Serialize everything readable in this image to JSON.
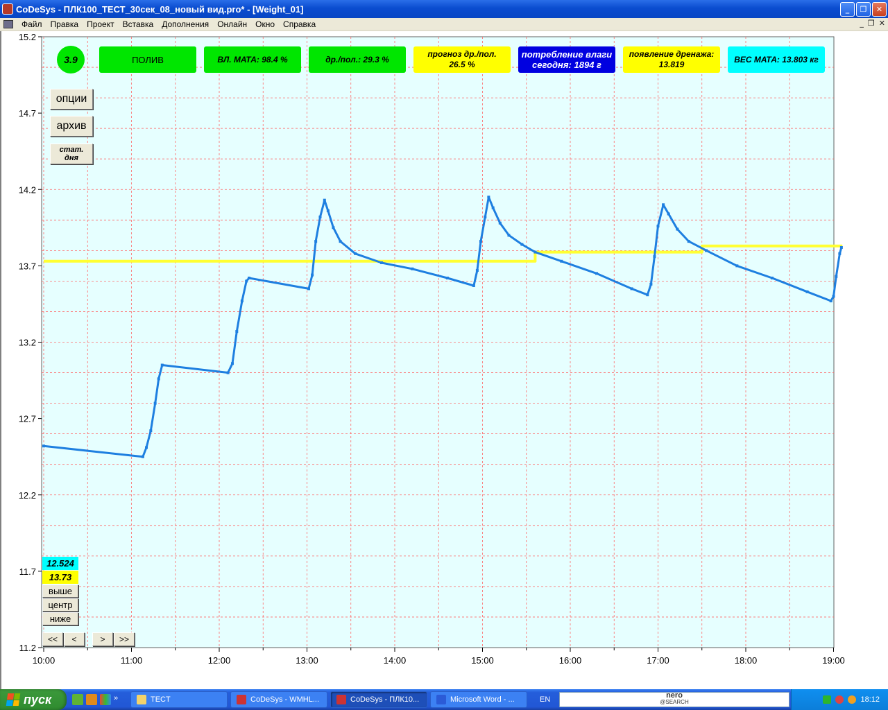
{
  "window": {
    "title": "CoDeSys - ПЛК100_ТЕСТ_30сек_08_новый вид.pro* - [Weight_01]",
    "controls": {
      "minimize": "_",
      "restore": "❐",
      "close": "✕"
    }
  },
  "menu": {
    "items": [
      "Файл",
      "Правка",
      "Проект",
      "Вставка",
      "Дополнения",
      "Онлайн",
      "Окно",
      "Справка"
    ],
    "mdi_controls": {
      "minimize": "_",
      "restore": "❐",
      "close": "✕"
    }
  },
  "status_panels": {
    "counter": {
      "label": "3.9",
      "color": "#00e600"
    },
    "mode": {
      "label": "ПОЛИВ",
      "color": "#00e600"
    },
    "mat_moisture": {
      "label": "ВЛ. МАТА: 98.4 %",
      "color": "#00e600"
    },
    "drain_ratio": {
      "label": "др./пол.: 29.3 %",
      "color": "#00e600"
    },
    "drain_forecast": {
      "line1": "прогноз  др./пол.",
      "line2": "26.5 %",
      "color": "#ffff00"
    },
    "consumption": {
      "line1": "потребление влаги",
      "line2": "сегодня: 1894 г",
      "color": "#0000e0"
    },
    "drain_onset": {
      "line1": "появление дренажа:",
      "line2": "13.819",
      "color": "#ffff00"
    },
    "mat_weight": {
      "label": "ВЕС МАТА: 13.803 кг",
      "color": "#00ffff"
    }
  },
  "side_buttons": {
    "options": "опции",
    "archive": "архив",
    "day_stats_line1": "стат.",
    "day_stats_line2": "дня"
  },
  "readouts": {
    "cursor_value": "12.524",
    "reference_value": "13.73"
  },
  "scale_buttons": {
    "up": "выше",
    "center": "центр",
    "down": "ниже"
  },
  "nav_buttons": {
    "first": "<<",
    "prev": "<",
    "next": ">",
    "last": ">>"
  },
  "taskbar": {
    "start": "пуск",
    "tasks": [
      {
        "label": "TECT",
        "active": false
      },
      {
        "label": "CoDeSys - WMHL...",
        "active": false
      },
      {
        "label": "CoDeSys - ПЛК10...",
        "active": true
      },
      {
        "label": "Microsoft Word - ...",
        "active": false
      }
    ],
    "lang": "EN",
    "search_brand": "nero",
    "search_sub": "@SEARCH",
    "clock": "18:12"
  },
  "chart_data": {
    "type": "line",
    "plot_background": "#e6ffff",
    "grid": true,
    "grid_color": "#ff6666",
    "x_ticks": [
      "10:00",
      "11:00",
      "12:00",
      "13:00",
      "14:00",
      "15:00",
      "16:00",
      "17:00",
      "18:00",
      "19:00"
    ],
    "y_ticks": [
      "15.2",
      "14.7",
      "14.2",
      "13.7",
      "13.2",
      "12.7",
      "12.2",
      "11.7",
      "11.2"
    ],
    "xlim_hours": [
      10.0,
      19.0
    ],
    "ylim": [
      11.2,
      15.2
    ],
    "series": [
      {
        "color": "#1e7fe0",
        "points": [
          [
            10.0,
            12.52
          ],
          [
            11.13,
            12.45
          ],
          [
            11.17,
            12.51
          ],
          [
            11.22,
            12.62
          ],
          [
            11.27,
            12.8
          ],
          [
            11.31,
            12.96
          ],
          [
            11.35,
            13.05
          ],
          [
            12.1,
            13.0
          ],
          [
            12.15,
            13.06
          ],
          [
            12.2,
            13.27
          ],
          [
            12.26,
            13.47
          ],
          [
            12.31,
            13.6
          ],
          [
            12.34,
            13.62
          ],
          [
            13.02,
            13.55
          ],
          [
            13.06,
            13.64
          ],
          [
            13.1,
            13.86
          ],
          [
            13.15,
            14.02
          ],
          [
            13.2,
            14.13
          ],
          [
            13.24,
            14.06
          ],
          [
            13.3,
            13.95
          ],
          [
            13.38,
            13.86
          ],
          [
            13.55,
            13.78
          ],
          [
            13.85,
            13.72
          ],
          [
            14.2,
            13.68
          ],
          [
            14.6,
            13.62
          ],
          [
            14.9,
            13.57
          ],
          [
            14.94,
            13.67
          ],
          [
            14.98,
            13.86
          ],
          [
            15.03,
            14.02
          ],
          [
            15.07,
            14.15
          ],
          [
            15.12,
            14.08
          ],
          [
            15.2,
            13.98
          ],
          [
            15.3,
            13.9
          ],
          [
            15.45,
            13.84
          ],
          [
            15.6,
            13.79
          ],
          [
            15.9,
            13.73
          ],
          [
            16.3,
            13.65
          ],
          [
            16.7,
            13.55
          ],
          [
            16.88,
            13.51
          ],
          [
            16.92,
            13.58
          ],
          [
            16.96,
            13.76
          ],
          [
            17.0,
            13.96
          ],
          [
            17.06,
            14.1
          ],
          [
            17.12,
            14.04
          ],
          [
            17.22,
            13.94
          ],
          [
            17.35,
            13.86
          ],
          [
            17.55,
            13.8
          ],
          [
            17.9,
            13.7
          ],
          [
            18.3,
            13.62
          ],
          [
            18.7,
            13.53
          ],
          [
            18.97,
            13.47
          ],
          [
            19.0,
            13.5
          ],
          [
            19.03,
            13.63
          ],
          [
            19.07,
            13.78
          ],
          [
            19.09,
            13.82
          ]
        ]
      },
      {
        "color": "#ffff33",
        "points": [
          [
            10.0,
            13.73
          ],
          [
            15.6,
            13.73
          ],
          [
            15.6,
            13.79
          ],
          [
            17.5,
            13.79
          ],
          [
            17.5,
            13.83
          ],
          [
            19.1,
            13.83
          ]
        ]
      }
    ]
  }
}
